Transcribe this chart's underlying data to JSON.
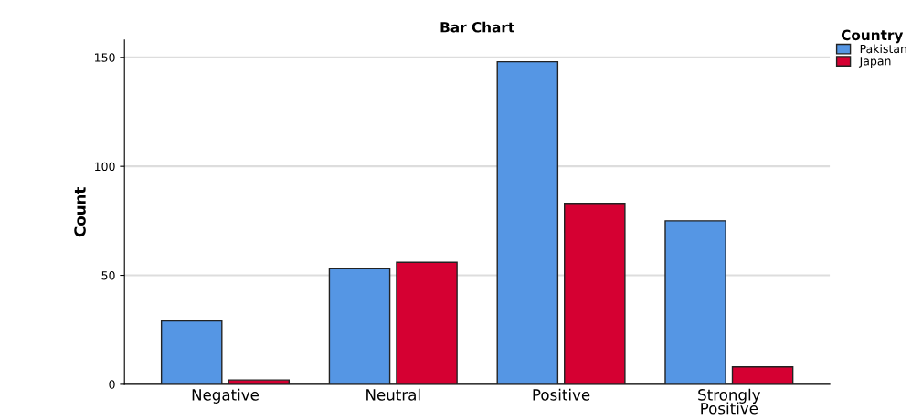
{
  "chart_data": {
    "type": "bar",
    "title": "Bar Chart",
    "ylabel": "Count",
    "legend_title": "Country",
    "categories": [
      "Negative",
      "Neutral",
      "Positive",
      "Strongly\nPositive"
    ],
    "series": [
      {
        "name": "Pakistan",
        "color": "#5596e4",
        "values": [
          29,
          53,
          148,
          75
        ]
      },
      {
        "name": "Japan",
        "color": "#d50032",
        "values": [
          2,
          56,
          83,
          8
        ]
      }
    ],
    "ylim": [
      0,
      158
    ],
    "yticks": [
      0,
      50,
      100,
      150
    ],
    "grid": "y",
    "legend": "top right"
  }
}
